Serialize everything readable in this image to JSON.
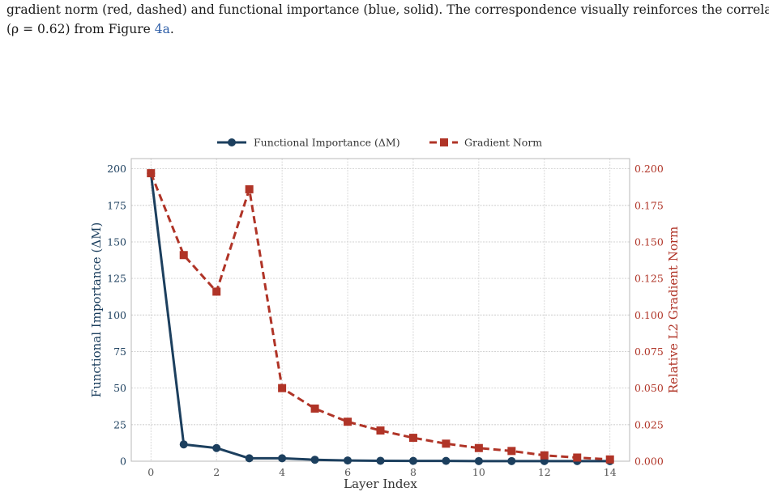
{
  "caption": {
    "line1": "gradient norm (red, dashed) and functional importance (blue, solid). The correspondence visually reinforces the correlation",
    "line2_prefix": "(ρ = 0.62) from Figure ",
    "line2_ref": "4a",
    "line2_suffix": "."
  },
  "chart_data": {
    "type": "line",
    "xlabel": "Layer Index",
    "ylabel_left": "Functional Importance (ΔM)",
    "ylabel_right": "Relative L2 Gradient Norm",
    "xlim": [
      -0.6,
      14.6
    ],
    "ylim_left": [
      0,
      207
    ],
    "ylim_right": [
      0,
      0.207
    ],
    "x_ticks": [
      0,
      2,
      4,
      6,
      8,
      10,
      12,
      14
    ],
    "x_tick_labels": [
      "0",
      "2",
      "4",
      "6",
      "8",
      "10",
      "12",
      "14"
    ],
    "y_left_ticks": [
      0,
      25,
      50,
      75,
      100,
      125,
      150,
      175,
      200
    ],
    "y_left_tick_labels": [
      "0",
      "25",
      "50",
      "75",
      "100",
      "125",
      "150",
      "175",
      "200"
    ],
    "y_right_ticks": [
      0,
      0.025,
      0.05,
      0.075,
      0.1,
      0.125,
      0.15,
      0.175,
      0.2
    ],
    "y_right_tick_labels": [
      "0.000",
      "0.025",
      "0.050",
      "0.075",
      "0.100",
      "0.125",
      "0.150",
      "0.175",
      "0.200"
    ],
    "grid": true,
    "legend_position": "top-center",
    "x": [
      0,
      1,
      2,
      3,
      4,
      5,
      6,
      7,
      8,
      9,
      10,
      11,
      12,
      13,
      14
    ],
    "series": [
      {
        "name": "Functional Importance (ΔM)",
        "axis": "left",
        "style": "solid",
        "marker": "circle",
        "color": "#1c3f5e",
        "values": [
          197,
          11.5,
          9,
          2,
          2,
          1,
          0.5,
          0.3,
          0.2,
          0.2,
          0.1,
          0.1,
          0.1,
          0.1,
          0.1
        ]
      },
      {
        "name": "Gradient Norm",
        "axis": "right",
        "style": "dashed",
        "marker": "square",
        "color": "#b03427",
        "values": [
          0.197,
          0.141,
          0.116,
          0.186,
          0.05,
          0.036,
          0.027,
          0.021,
          0.016,
          0.012,
          0.009,
          0.007,
          0.004,
          0.0025,
          0.0012
        ]
      }
    ],
    "colors": {
      "left_axis": "#1c3f5e",
      "right_axis": "#b03427",
      "grid": "#cfcfcf",
      "frame": "#b8b8b8"
    }
  }
}
